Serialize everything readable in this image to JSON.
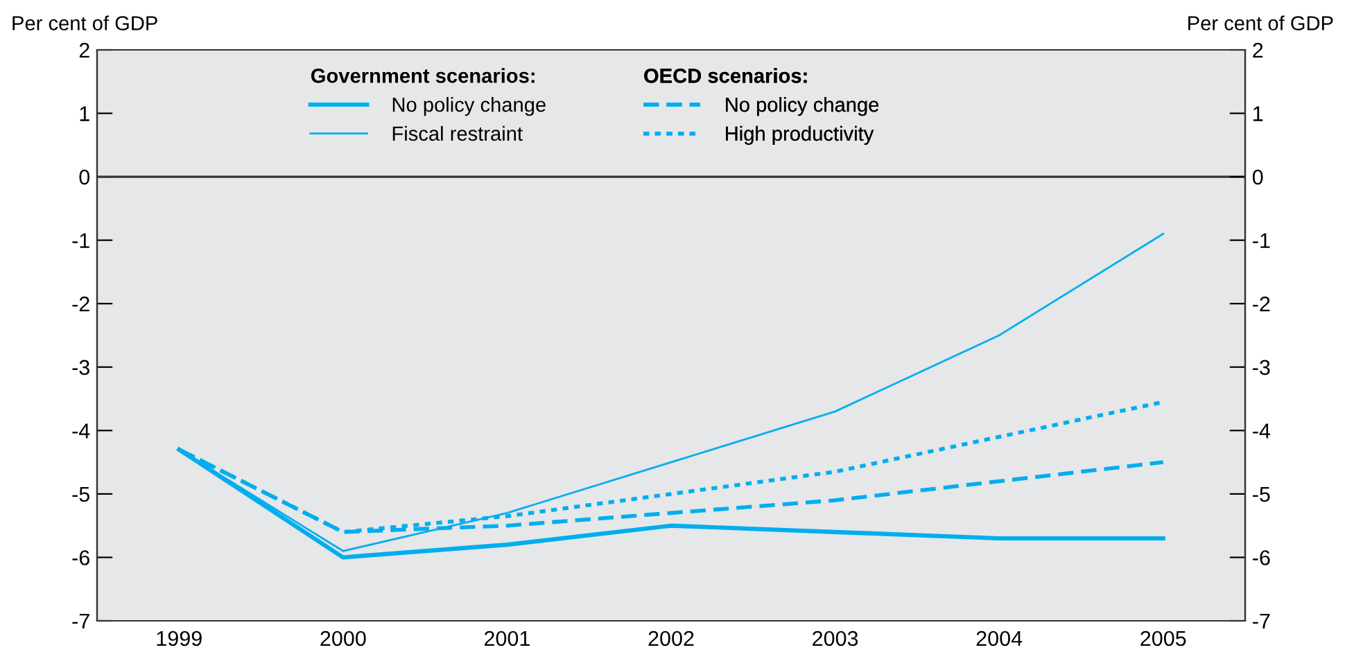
{
  "chart_data": {
    "type": "line",
    "ylabel": "Per cent of GDP",
    "y2label": "Per cent of GDP",
    "annotations": [
      "Government scenarios:",
      "OECD scenarios:"
    ],
    "categories": [
      "1999",
      "2000",
      "2001",
      "2002",
      "2003",
      "2004",
      "2005"
    ],
    "series": [
      {
        "name": "No policy change",
        "color": "#00aeef",
        "line_style": "solid",
        "values": [
          -4.3,
          -6.0,
          -5.8,
          -5.5,
          -5.6,
          -5.7,
          -5.7
        ]
      },
      {
        "name": "Fiscal restraint",
        "color": "#00aeef",
        "line_style": "solid",
        "values": [
          -4.3,
          -5.9,
          -5.3,
          -4.5,
          -3.7,
          -2.5,
          -0.9
        ]
      },
      {
        "name": "No policy change",
        "color": "#00aeef",
        "line_style": "dashed",
        "values": [
          -4.3,
          -5.6,
          -5.5,
          -5.3,
          -5.1,
          -4.8,
          -4.5
        ]
      },
      {
        "name": "High productivity",
        "color": "#00aeef",
        "line_style": "dotted",
        "values": [
          -4.3,
          -5.6,
          -5.35,
          -5.0,
          -4.65,
          -4.1,
          -3.55
        ]
      }
    ],
    "ylim": [
      -7,
      2
    ],
    "yticks": [
      -7,
      -6,
      -5,
      -4,
      -3,
      -2,
      -1,
      0,
      1,
      2
    ],
    "y2lim": [
      -7,
      2
    ],
    "y2ticks": [
      -7,
      -6,
      -5,
      -4,
      -3,
      -2,
      -1,
      0,
      1,
      2
    ],
    "ref_lines": [
      {
        "axis": "y",
        "value": 0,
        "color": "#333333"
      }
    ],
    "grid": false,
    "legend": "top",
    "marker": "none"
  }
}
